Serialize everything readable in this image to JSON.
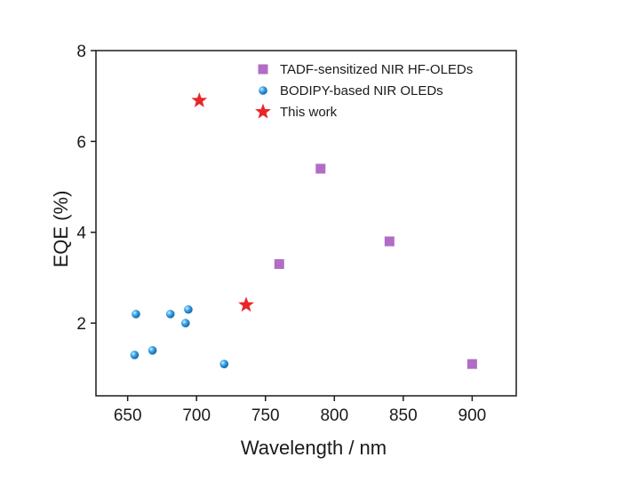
{
  "chart_data": {
    "type": "scatter",
    "xlabel": "Wavelength / nm",
    "ylabel": "EQE (%)",
    "xlim": [
      627,
      932
    ],
    "ylim": [
      0.4,
      8
    ],
    "xticks": [
      650,
      700,
      750,
      800,
      850,
      900
    ],
    "yticks": [
      2,
      4,
      6,
      8
    ],
    "grid": false,
    "legend_position": "top-right",
    "series": [
      {
        "name": "TADF-sensitized NIR HF-OLEDs",
        "marker": "square",
        "color": "#b26cc6",
        "points": [
          [
            760,
            3.3
          ],
          [
            790,
            5.4
          ],
          [
            840,
            3.8
          ],
          [
            900,
            1.1
          ]
        ]
      },
      {
        "name": "BODIPY-based NIR OLEDs",
        "marker": "sphere",
        "color": "#2e9be0",
        "points": [
          [
            655,
            1.3
          ],
          [
            656,
            2.2
          ],
          [
            668,
            1.4
          ],
          [
            681,
            2.2
          ],
          [
            692,
            2.0
          ],
          [
            694,
            2.3
          ],
          [
            720,
            1.1
          ]
        ]
      },
      {
        "name": "This work",
        "marker": "star",
        "color": "#e8262a",
        "points": [
          [
            702,
            6.9
          ],
          [
            736,
            2.4
          ]
        ]
      }
    ]
  }
}
